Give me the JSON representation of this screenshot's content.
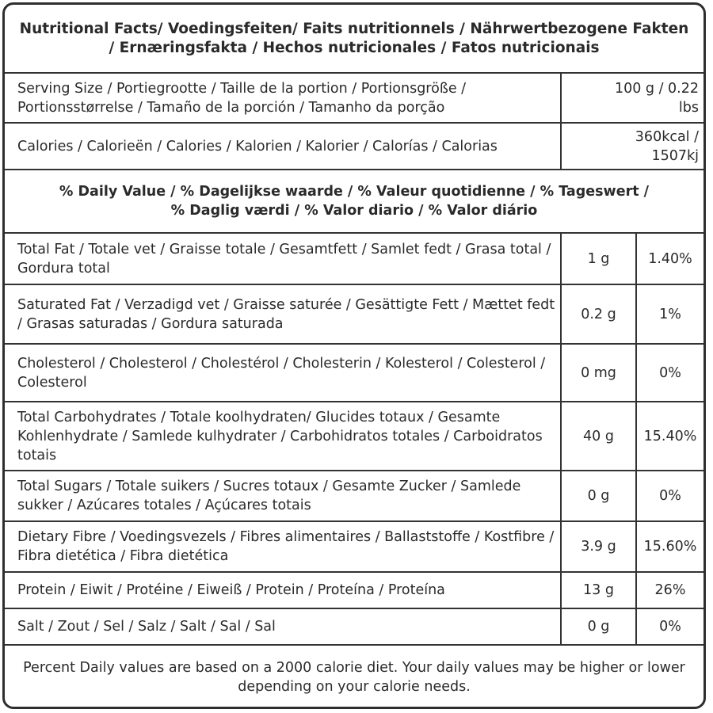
{
  "title": "Nutritional Facts/ Voedingsfeiten/ Faits nutritionnels / Nährwertbezogene Fakten / Ernæringsfakta / Hechos nutricionales / Fatos nutricionais",
  "serving": {
    "label": "Serving Size / Portiegrootte / Taille de la portion / Portionsgröße / Portionsstørrelse / Tamaño de la porción / Tamanho da porção",
    "value": "100 g / 0.22 lbs"
  },
  "calories": {
    "label": "Calories / Calorieën / Calories / Kalorien / Kalorier / Calorías / Calorias",
    "value": "360kcal / 1507kj"
  },
  "daily_value_header": "% Daily Value / % Dagelijkse waarde / % Valeur quotidienne / % Tageswert / % Daglig værdi / % Valor diario / % Valor diário",
  "nutrients": [
    {
      "label": "Total Fat / Totale vet / Graisse totale / Gesamtfett / Samlet fedt / Grasa total / Gordura total",
      "amount": "1 g",
      "percent": "1.40%"
    },
    {
      "label": "Saturated Fat / Verzadigd vet / Graisse saturée / Gesättigte Fett / Mættet fedt / Grasas saturadas / Gordura saturada",
      "amount": "0.2 g",
      "percent": "1%"
    },
    {
      "label": "Cholesterol / Cholesterol  / Cholestérol / Cholesterin /  Kolesterol / Colesterol / Colesterol",
      "amount": "0 mg",
      "percent": "0%"
    },
    {
      "label": "Total Carbohydrates / Totale koolhydraten/ Glucides totaux / Gesamte Kohlenhydrate / Samlede kulhydrater / Carbohidratos totales / Carboidratos totais",
      "amount": "40 g",
      "percent": "15.40%"
    },
    {
      "label": "Total Sugars / Totale suikers / Sucres totaux / Gesamte Zucker / Samlede sukker / Azúcares totales / Açúcares totais",
      "amount": "0 g",
      "percent": "0%"
    },
    {
      "label": "Dietary Fibre / Voedingsvezels / Fibres alimentaires / Ballaststoffe / Kostfibre / Fibra dietética / Fibra dietética",
      "amount": "3.9 g",
      "percent": "15.60%"
    },
    {
      "label": "Protein / Eiwit / Protéine / Eiweiß / Protein / Proteína / Proteína",
      "amount": "13 g",
      "percent": "26%"
    },
    {
      "label": "Salt / Zout / Sel / Salz / Salt / Sal / Sal",
      "amount": "0 g",
      "percent": "0%"
    }
  ],
  "footnote": "Percent Daily values are based on a 2000 calorie diet. Your daily values may be higher or lower depending on your calorie needs."
}
